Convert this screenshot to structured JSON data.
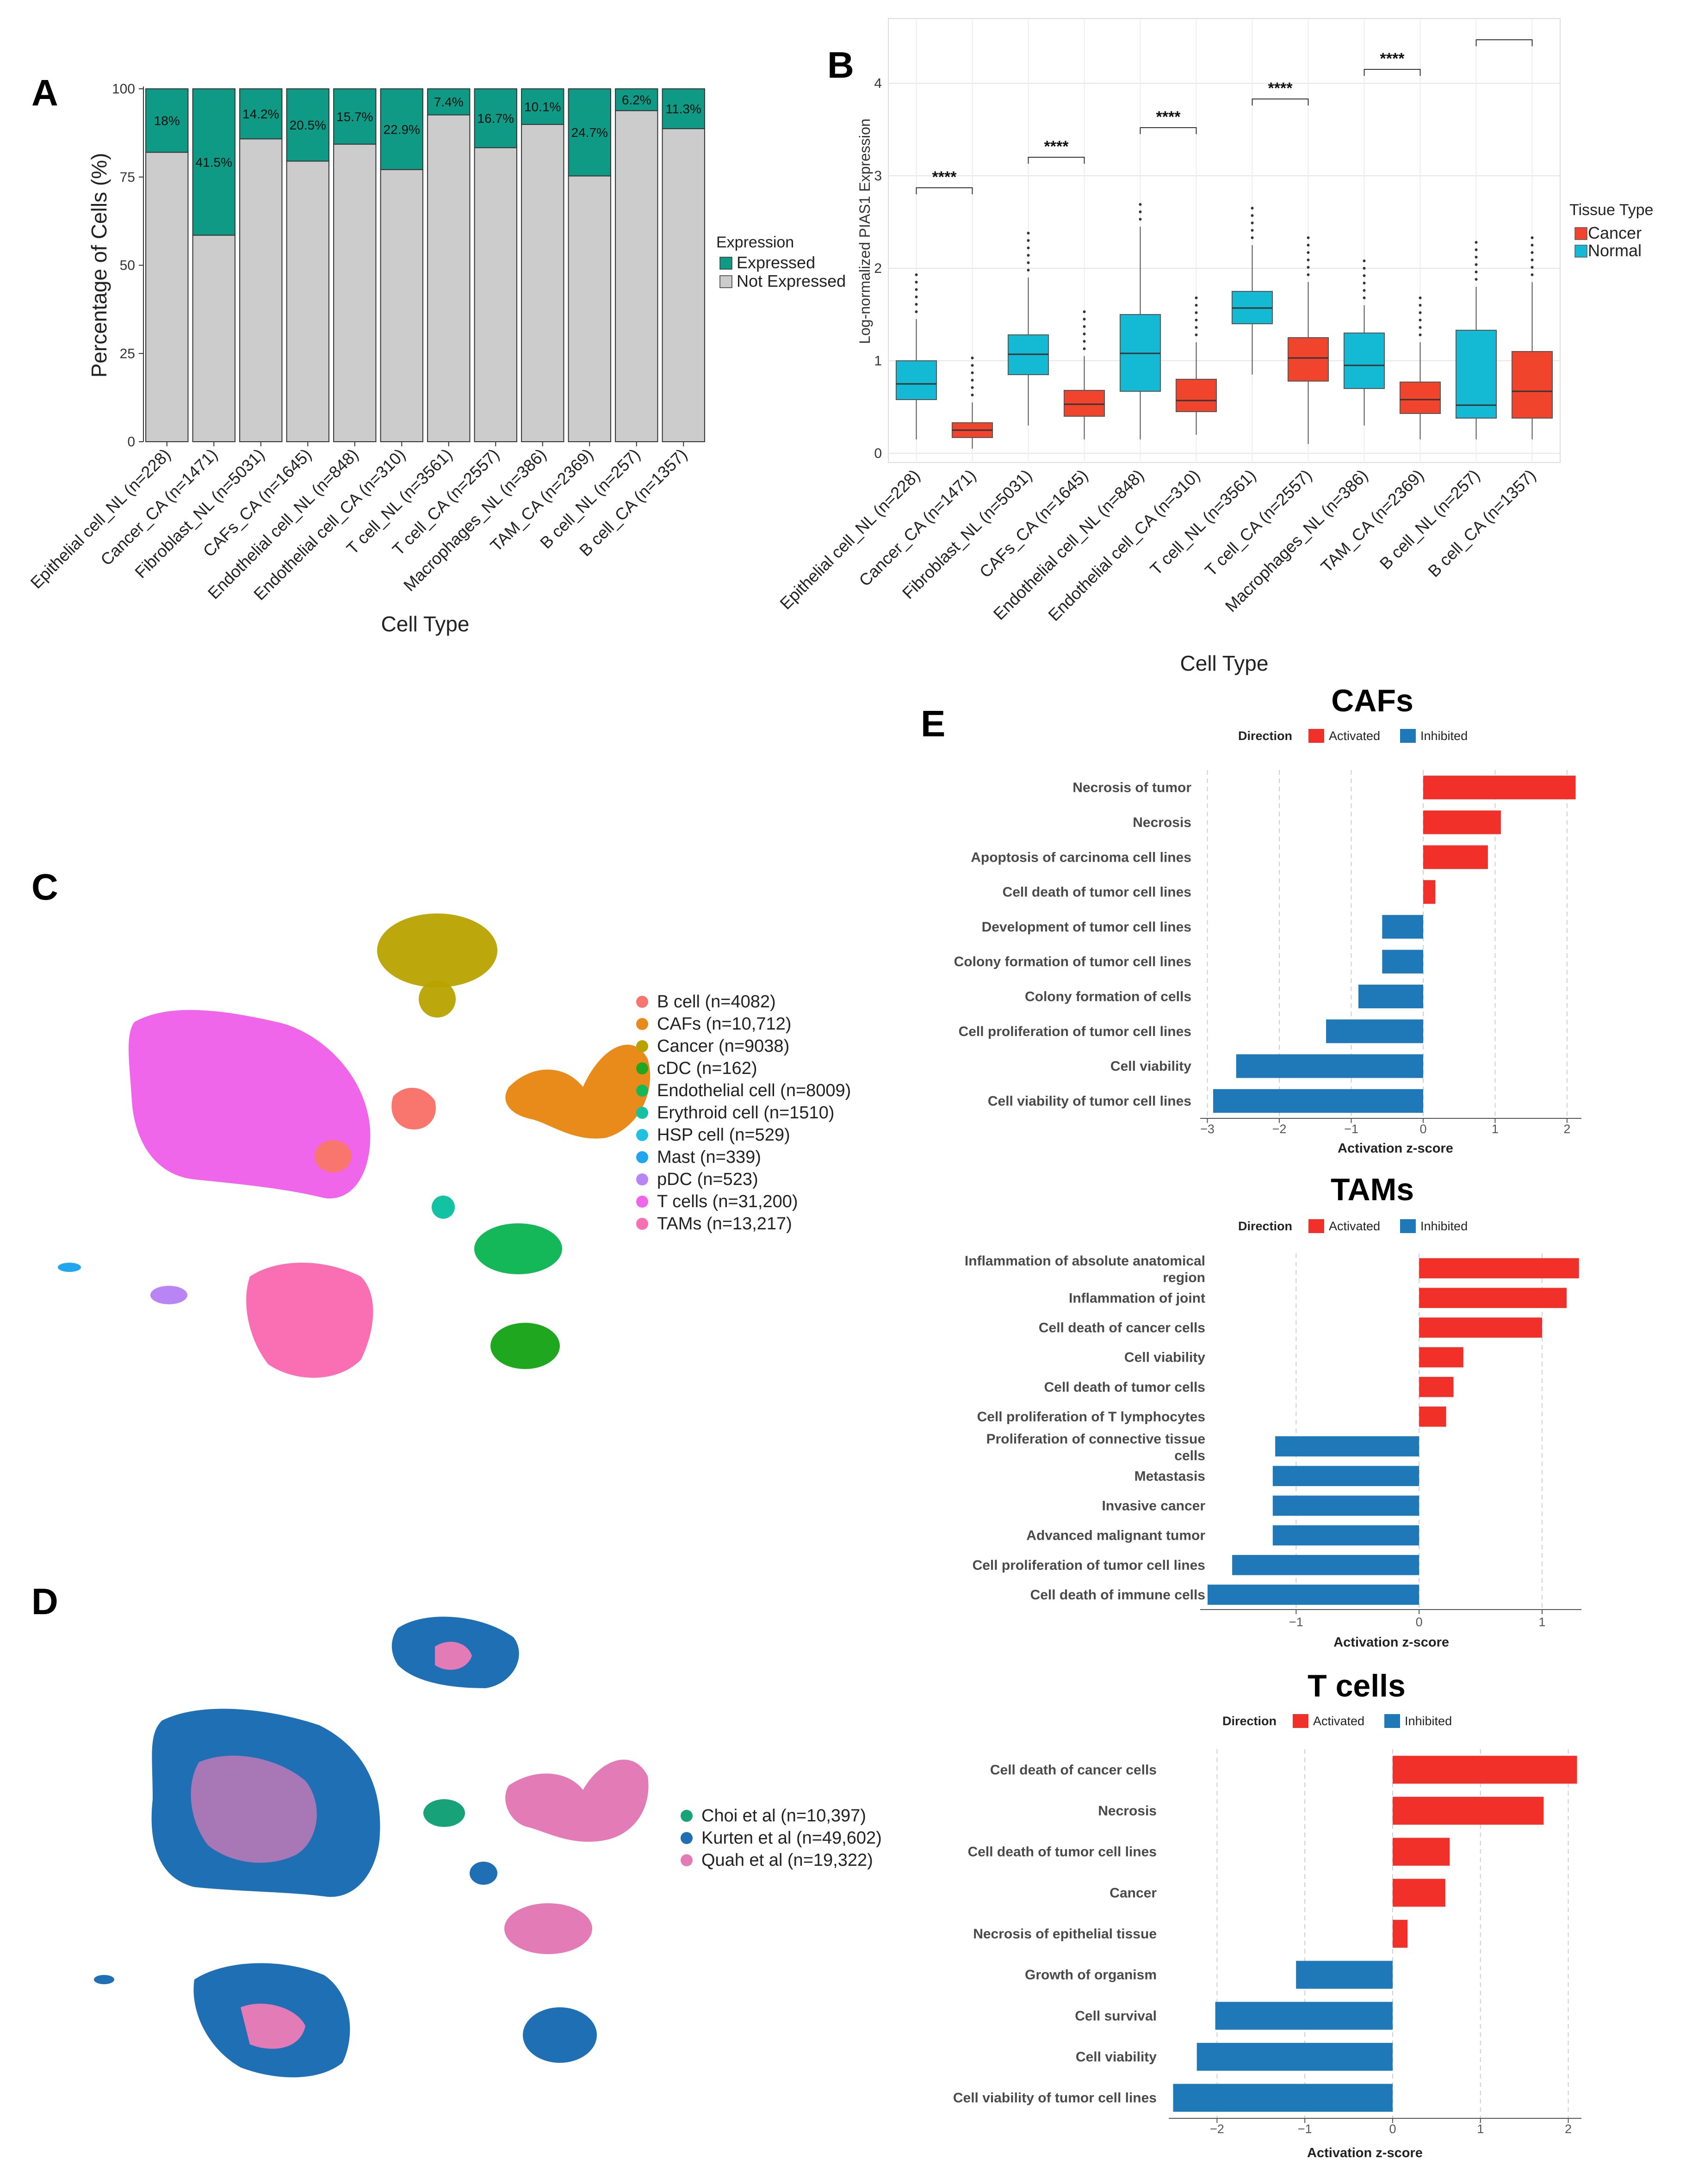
{
  "panels": {
    "A": "A",
    "B": "B",
    "C": "C",
    "D": "D",
    "E": "E"
  },
  "chart_data": [
    {
      "id": "A",
      "type": "bar",
      "stacked": true,
      "categories": [
        "Epithelial cell_NL (n=228)",
        "Cancer_CA (n=1471)",
        "Fibroblast_NL (n=5031)",
        "CAFs_CA (n=1645)",
        "Endothelial cell_NL (n=848)",
        "Endothelial cell_CA (n=310)",
        "T cell_NL (n=3561)",
        "T cell_CA (n=2557)",
        "Macrophages_NL (n=386)",
        "TAM_CA (n=2369)",
        "B cell_NL (n=257)",
        "B cell_CA (n=1357)"
      ],
      "series": [
        {
          "name": "Expressed",
          "values": [
            18,
            41.5,
            14.2,
            20.5,
            15.7,
            22.9,
            7.4,
            16.7,
            10.1,
            24.7,
            6.2,
            11.3
          ],
          "color": "#0f9a86"
        },
        {
          "name": "Not Expressed",
          "values": [
            82,
            58.5,
            85.8,
            79.5,
            84.3,
            77.1,
            92.6,
            83.3,
            89.9,
            75.3,
            93.8,
            88.7
          ],
          "color": "#cccccc"
        }
      ],
      "value_labels": [
        "18%",
        "41.5%",
        "14.2%",
        "20.5%",
        "15.7%",
        "22.9%",
        "7.4%",
        "16.7%",
        "10.1%",
        "24.7%",
        "6.2%",
        "11.3%"
      ],
      "yticks": [
        "0",
        "25",
        "50",
        "75",
        "100"
      ],
      "ylim": [
        0,
        100
      ],
      "xlabel": "Cell Type",
      "ylabel": "Percentage of Cells (%)",
      "legend_title": "Expression",
      "legend": [
        "Expressed",
        "Not Expressed"
      ]
    },
    {
      "id": "B",
      "type": "box",
      "categories": [
        "Epithelial cell_NL (n=228)",
        "Cancer_CA (n=1471)",
        "Fibroblast_NL (n=5031)",
        "CAFs_CA (n=1645)",
        "Endothelial cell_NL (n=848)",
        "Endothelial cell_CA (n=310)",
        "T cell_NL (n=3561)",
        "T cell_CA (n=2557)",
        "Macrophages_NL (n=386)",
        "TAM_CA (n=2369)",
        "B cell_NL (n=257)",
        "B cell_CA (n=1357)"
      ],
      "tissue": [
        "Normal",
        "Cancer",
        "Normal",
        "Cancer",
        "Normal",
        "Cancer",
        "Normal",
        "Cancer",
        "Normal",
        "Cancer",
        "Normal",
        "Cancer"
      ],
      "boxes": [
        {
          "q1": 0.58,
          "med": 0.75,
          "q3": 1.0,
          "lo": 0.15,
          "hi": 1.45
        },
        {
          "q1": 0.17,
          "med": 0.25,
          "q3": 0.33,
          "lo": 0.05,
          "hi": 0.55
        },
        {
          "q1": 0.85,
          "med": 1.07,
          "q3": 1.28,
          "lo": 0.3,
          "hi": 1.9
        },
        {
          "q1": 0.4,
          "med": 0.53,
          "q3": 0.68,
          "lo": 0.15,
          "hi": 1.05
        },
        {
          "q1": 0.67,
          "med": 1.08,
          "q3": 1.5,
          "lo": 0.15,
          "hi": 2.45
        },
        {
          "q1": 0.45,
          "med": 0.57,
          "q3": 0.8,
          "lo": 0.2,
          "hi": 1.2
        },
        {
          "q1": 1.4,
          "med": 1.57,
          "q3": 1.75,
          "lo": 0.85,
          "hi": 2.25
        },
        {
          "q1": 0.78,
          "med": 1.03,
          "q3": 1.25,
          "lo": 0.1,
          "hi": 1.85
        },
        {
          "q1": 0.7,
          "med": 0.95,
          "q3": 1.3,
          "lo": 0.3,
          "hi": 1.6
        },
        {
          "q1": 0.43,
          "med": 0.58,
          "q3": 0.77,
          "lo": 0.15,
          "hi": 1.2
        },
        {
          "q1": 0.38,
          "med": 0.52,
          "q3": 1.33,
          "lo": 0.15,
          "hi": 1.8
        },
        {
          "q1": 0.38,
          "med": 0.67,
          "q3": 1.1,
          "lo": 0.15,
          "hi": 1.85
        }
      ],
      "significance": [
        "****",
        "****",
        "****",
        "****",
        "****",
        ""
      ],
      "significance_y": [
        2.87,
        3.2,
        3.52,
        3.83,
        4.15,
        4.47
      ],
      "yticks": [
        "0",
        "1",
        "2",
        "3",
        "4"
      ],
      "ylim": [
        -0.1,
        4.7
      ],
      "xlabel": "Cell Type",
      "ylabel": "Log-normalized PIAS1 Expression",
      "legend_title": "Tissue Type",
      "legend": [
        "Cancer",
        "Normal"
      ],
      "colors": {
        "Cancer": "#f0452c",
        "Normal": "#14bad4"
      }
    },
    {
      "id": "C",
      "type": "scatter",
      "legend": [
        "B cell (n=4082)",
        "CAFs (n=10,712)",
        "Cancer (n=9038)",
        "cDC (n=162)",
        "Endothelial cell (n=8009)",
        "Erythroid cell (n=1510)",
        "HSP cell (n=529)",
        "Mast (n=339)",
        "pDC (n=523)",
        "T cells (n=31,200)",
        "TAMs (n=13,217)"
      ],
      "colors": [
        "#f8766d",
        "#e98b1a",
        "#b8a200",
        "#1fa81f",
        "#14b859",
        "#13c1a3",
        "#1fc0e0",
        "#1fa6ef",
        "#b985f5",
        "#f066ea",
        "#fa6fb3"
      ]
    },
    {
      "id": "D",
      "type": "scatter",
      "legend": [
        "Choi et al (n=10,397)",
        "Kurten et al (n=49,602)",
        "Quah et al (n=19,322)"
      ],
      "colors": [
        "#17a27a",
        "#1f6fb4",
        "#e27bb6"
      ]
    },
    {
      "id": "E1",
      "type": "bar",
      "orientation": "horizontal",
      "title": "CAFs",
      "categories": [
        "Necrosis of tumor",
        "Necrosis",
        "Apoptosis of carcinoma cell lines",
        "Cell death of tumor cell lines",
        "Development of tumor cell lines",
        "Colony formation of tumor cell lines",
        "Colony formation of cells",
        "Cell proliferation of tumor cell lines",
        "Cell viability",
        "Cell viability of tumor cell lines"
      ],
      "values": [
        2.12,
        1.08,
        0.9,
        0.17,
        -0.57,
        -0.57,
        -0.9,
        -1.35,
        -2.6,
        -2.92
      ],
      "xticks": [
        "−3",
        "−2",
        "−1",
        "0",
        "1",
        "2"
      ],
      "xlim": [
        -3.1,
        2.2
      ],
      "xlabel": "Activation z-score",
      "legend_title": "Direction",
      "legend": [
        "Activated",
        "Inhibited"
      ]
    },
    {
      "id": "E2",
      "type": "bar",
      "orientation": "horizontal",
      "title": "TAMs",
      "categories": [
        "Inflammation of absolute anatomical region",
        "Inflammation of joint",
        "Cell death of cancer cells",
        "Cell viability",
        "Cell death of tumor cells",
        "Cell proliferation of T lymphocytes",
        "Proliferation of connective tissue cells",
        "Metastasis",
        "Invasive cancer",
        "Advanced malignant tumor",
        "Cell proliferation of tumor cell lines",
        "Cell death of immune cells"
      ],
      "values": [
        1.3,
        1.2,
        1.0,
        0.36,
        0.28,
        0.22,
        -1.17,
        -1.19,
        -1.19,
        -1.19,
        -1.52,
        -1.72
      ],
      "xticks": [
        "−1",
        "0",
        "1"
      ],
      "xlim": [
        -1.78,
        1.32
      ],
      "xlabel": "Activation z-score",
      "legend_title": "Direction",
      "legend": [
        "Activated",
        "Inhibited"
      ]
    },
    {
      "id": "E3",
      "type": "bar",
      "orientation": "horizontal",
      "title": "T cells",
      "categories": [
        "Cell death of cancer cells",
        "Necrosis",
        "Cell death of tumor cell lines",
        "Cancer",
        "Necrosis of epithelial tissue",
        "Growth of organism",
        "Cell survival",
        "Cell viability",
        "Cell viability of tumor cell lines"
      ],
      "values": [
        2.1,
        1.72,
        0.65,
        0.6,
        0.17,
        -1.1,
        -2.02,
        -2.23,
        -2.5
      ],
      "xticks": [
        "−2",
        "−1",
        "0",
        "1",
        "2"
      ],
      "xlim": [
        -2.55,
        2.15
      ],
      "xlabel": "Activation z-score",
      "legend_title": "Direction",
      "legend": [
        "Activated",
        "Inhibited"
      ]
    }
  ],
  "colors": {
    "activated": "#f1302a",
    "inhibited": "#1f78b8",
    "expressed": "#0f9a86",
    "not_expressed": "#cccccc"
  }
}
